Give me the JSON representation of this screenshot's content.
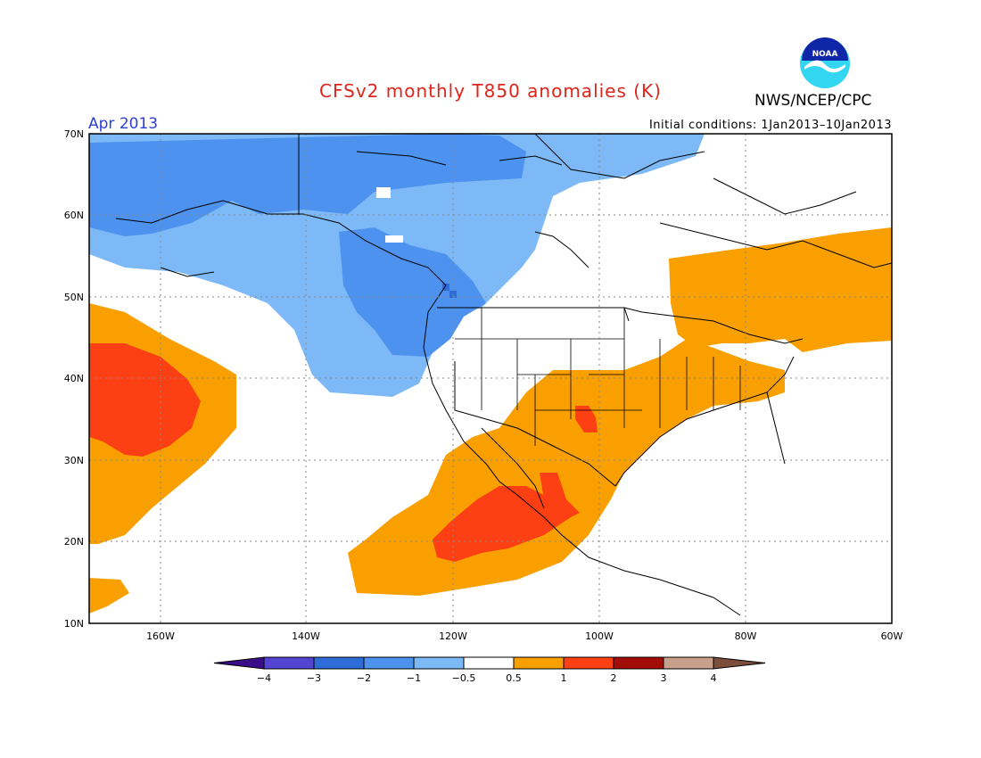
{
  "header": {
    "title": "CFSv2 monthly T850 anomalies (K)",
    "agency": "NWS/NCEP/CPC",
    "month": "Apr 2013",
    "initial_conditions": "Initial conditions: 1Jan2013–10Jan2013",
    "logo_text": "NOAA"
  },
  "colors": {
    "title": "#e0241b",
    "month": "#2c3ed6",
    "bins": [
      "#3a0e86",
      "#5444d2",
      "#2e6cd8",
      "#4c92ee",
      "#7db9f7",
      "#ffffff",
      "#f9a000",
      "#fc4014",
      "#a20d08",
      "#c9a08c",
      "#7b4e3c"
    ]
  },
  "axes": {
    "lat_labels": [
      "70N",
      "60N",
      "50N",
      "40N",
      "30N",
      "20N",
      "10N"
    ],
    "lon_labels": [
      "160W",
      "140W",
      "120W",
      "100W",
      "80W",
      "60W"
    ]
  },
  "colorbar": {
    "labels": [
      "−4",
      "−3",
      "−2",
      "−1",
      "−0.5",
      "0.5",
      "1",
      "2",
      "3",
      "4"
    ]
  }
}
